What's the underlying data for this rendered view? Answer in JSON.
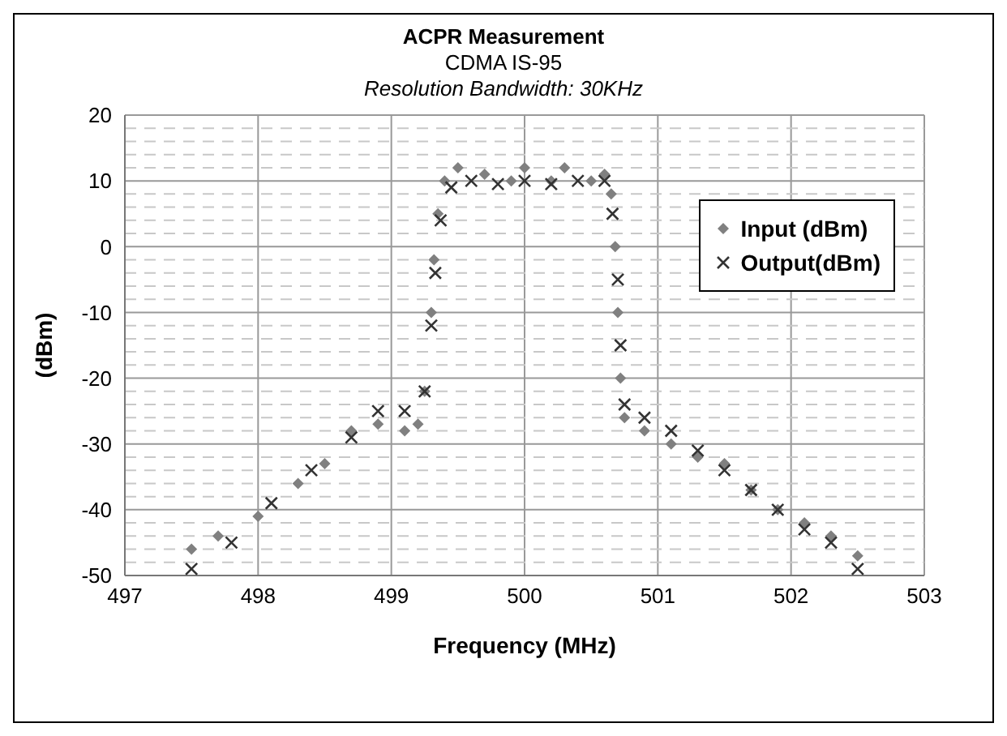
{
  "chart_data": {
    "type": "scatter",
    "title": "ACPR Measurement",
    "subtitle": "CDMA IS-95",
    "annotations": [
      "Resolution Bandwidth: 30KHz"
    ],
    "xlabel": "Frequency (MHz)",
    "ylabel": "(dBm)",
    "xlim": [
      497,
      503
    ],
    "xticks": [
      497,
      498,
      499,
      500,
      501,
      502,
      503
    ],
    "ylim": [
      -50,
      20
    ],
    "yticks": [
      -50,
      {
        "value": -48,
        "label": null
      },
      {
        "value": -46,
        "label": null
      },
      {
        "value": -44,
        "label": null
      },
      {
        "value": -42,
        "label": null
      },
      -40,
      {
        "value": -38,
        "label": null
      },
      {
        "value": -36,
        "label": null
      },
      {
        "value": -34,
        "label": null
      },
      {
        "value": -32,
        "label": null
      },
      -30,
      {
        "value": -28,
        "label": null
      },
      {
        "value": -26,
        "label": null
      },
      {
        "value": -24,
        "label": null
      },
      {
        "value": -22,
        "label": null
      },
      -20,
      {
        "value": -18,
        "label": null
      },
      {
        "value": -16,
        "label": null
      },
      {
        "value": -14,
        "label": null
      },
      {
        "value": -12,
        "label": null
      },
      -10,
      {
        "value": -8,
        "label": null
      },
      {
        "value": -6,
        "label": null
      },
      {
        "value": -4,
        "label": null
      },
      {
        "value": -2,
        "label": null
      },
      0,
      {
        "value": 2,
        "label": null
      },
      {
        "value": 4,
        "label": null
      },
      {
        "value": 6,
        "label": null
      },
      {
        "value": 8,
        "label": null
      },
      10,
      {
        "value": 12,
        "label": null
      },
      {
        "value": 14,
        "label": null
      },
      {
        "value": 16,
        "label": null
      },
      {
        "value": 18,
        "label": null
      },
      20
    ],
    "grid": true,
    "legend": "right",
    "series": [
      {
        "name": "Input (dBm)",
        "color": "#808080",
        "marker": "diamond",
        "x": [
          497.5,
          497.7,
          498.0,
          498.3,
          498.5,
          498.7,
          498.9,
          499.1,
          499.2,
          499.25,
          499.3,
          499.32,
          499.35,
          499.4,
          499.5,
          499.7,
          499.9,
          500.0,
          500.2,
          500.3,
          500.5,
          500.6,
          500.65,
          500.68,
          500.7,
          500.72,
          500.75,
          500.9,
          501.1,
          501.3,
          501.5,
          501.7,
          501.9,
          502.1,
          502.3,
          502.5
        ],
        "values": [
          -46,
          -44,
          -41,
          -36,
          -33,
          -28,
          -27,
          -28,
          -27,
          -22,
          -10,
          -2,
          5,
          10,
          12,
          11,
          10,
          12,
          10,
          12,
          10,
          11,
          8,
          0,
          -10,
          -20,
          -26,
          -28,
          -30,
          -32,
          -33,
          -37,
          -40,
          -42,
          -44,
          -47
        ]
      },
      {
        "name": "Output(dBm)",
        "color": "#333333",
        "marker": "cross",
        "x": [
          497.5,
          497.8,
          498.1,
          498.4,
          498.7,
          498.9,
          499.1,
          499.25,
          499.3,
          499.33,
          499.37,
          499.45,
          499.6,
          499.8,
          500.0,
          500.2,
          500.4,
          500.6,
          500.66,
          500.7,
          500.72,
          500.75,
          500.9,
          501.1,
          501.3,
          501.5,
          501.7,
          501.9,
          502.1,
          502.3,
          502.5
        ],
        "values": [
          -49,
          -45,
          -39,
          -34,
          -29,
          -25,
          -25,
          -22,
          -12,
          -4,
          4,
          9,
          10,
          9.5,
          10,
          9.5,
          10,
          10,
          5,
          -5,
          -15,
          -24,
          -26,
          -28,
          -31,
          -34,
          -37,
          -40,
          -43,
          -45,
          -49
        ]
      }
    ]
  }
}
